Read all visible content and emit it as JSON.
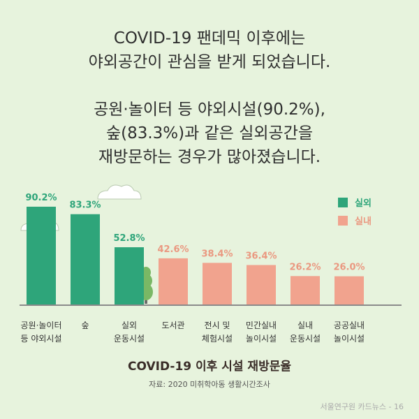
{
  "headline": {
    "lines": [
      "COVID-19 팬데믹 이후에는",
      "야외공간이 관심을 받게 되었습니다."
    ]
  },
  "subhead": {
    "lines": [
      "공원·놀이터 등 야외시설(90.2%),",
      "숲(83.3%)과 같은 실외공간을",
      "재방문하는 경우가 많아졌습니다."
    ]
  },
  "colors": {
    "outdoor": "#2ea57a",
    "indoor": "#f1a38e",
    "outdoor_label": "#2ea57a",
    "indoor_label": "#ea9880",
    "baseline": "#8a8a8a"
  },
  "chart_data": {
    "type": "bar",
    "title": "COVID-19 이후 시설 재방문율",
    "ylim": [
      0,
      100
    ],
    "grid": false,
    "legend_position": "top-right",
    "legend": [
      {
        "label": "실외",
        "group": "outdoor"
      },
      {
        "label": "실내",
        "group": "indoor"
      }
    ],
    "categories": [
      [
        "공원·놀이터",
        "등 야외시설"
      ],
      [
        "숲"
      ],
      [
        "실외",
        "운동시설"
      ],
      [
        "도서관"
      ],
      [
        "전시 및",
        "체험시설"
      ],
      [
        "민간실내",
        "놀이시설"
      ],
      [
        "실내",
        "운동시설"
      ],
      [
        "공공실내",
        "놀이시설"
      ]
    ],
    "groups": [
      "outdoor",
      "outdoor",
      "outdoor",
      "indoor",
      "indoor",
      "indoor",
      "indoor",
      "indoor"
    ],
    "values": [
      90.2,
      83.3,
      52.8,
      42.6,
      38.4,
      36.4,
      26.2,
      26.0
    ],
    "value_labels": [
      "90.2%",
      "83.3%",
      "52.8%",
      "42.6%",
      "38.4%",
      "36.4%",
      "26.2%",
      "26.0%"
    ]
  },
  "source": "자료: 2020 미취학아동 생활시간조사",
  "footer": "서울연구원 카드뉴스 - 16"
}
